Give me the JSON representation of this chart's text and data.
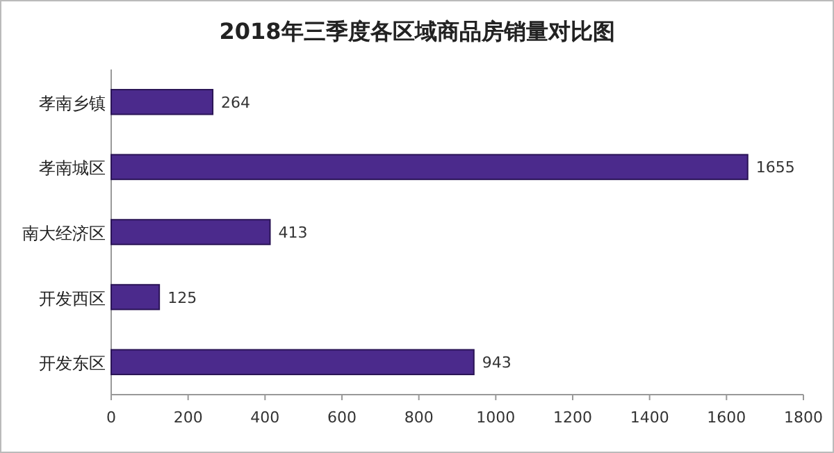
{
  "chart_data": {
    "type": "bar",
    "orientation": "horizontal",
    "title": "2018年三季度各区域商品房销量对比图",
    "categories": [
      "孝南乡镇",
      "孝南城区",
      "南大经济区",
      "开发西区",
      "开发东区"
    ],
    "values": [
      264,
      1655,
      413,
      125,
      943
    ],
    "color": "#4b2a8c",
    "xlim": [
      0,
      1800
    ],
    "xticks": [
      0,
      200,
      400,
      600,
      800,
      1000,
      1200,
      1400,
      1600,
      1800
    ],
    "data_labels": true,
    "grid": false
  }
}
